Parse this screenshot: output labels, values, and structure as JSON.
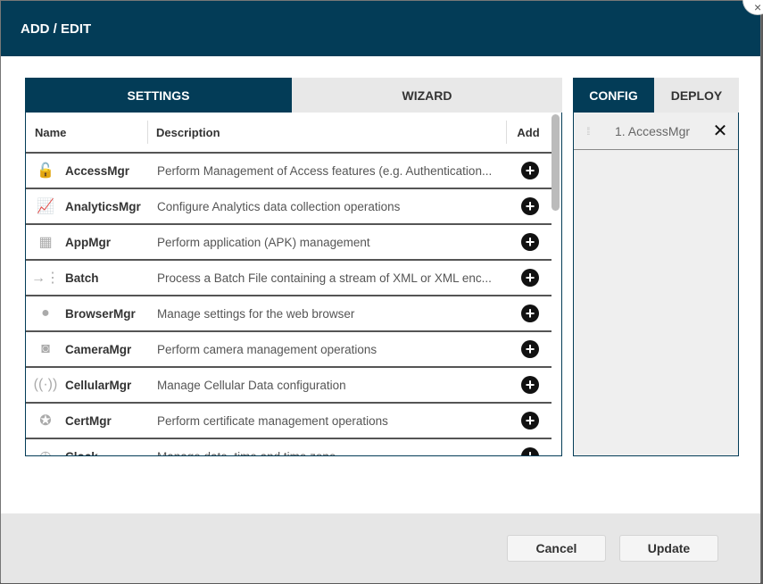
{
  "title": "ADD / EDIT",
  "close_glyph": "×",
  "left_tabs": [
    "SETTINGS",
    "WIZARD"
  ],
  "right_tabs": [
    "CONFIG",
    "DEPLOY"
  ],
  "columns": {
    "name": "Name",
    "description": "Description",
    "add": "Add"
  },
  "rows": [
    {
      "icon": "lock-open-icon",
      "glyph": "🔓",
      "name": "AccessMgr",
      "description": "Perform Management of Access features (e.g. Authentication..."
    },
    {
      "icon": "chart-icon",
      "glyph": "📈",
      "name": "AnalyticsMgr",
      "description": "Configure Analytics data collection operations"
    },
    {
      "icon": "apps-icon",
      "glyph": "▦",
      "name": "AppMgr",
      "description": "Perform application (APK) management"
    },
    {
      "icon": "batch-icon",
      "glyph": "→⋮",
      "name": "Batch",
      "description": "Process a Batch File containing a stream of XML or XML enc..."
    },
    {
      "icon": "globe-icon",
      "glyph": "●",
      "name": "BrowserMgr",
      "description": "Manage settings for the web browser"
    },
    {
      "icon": "camera-icon",
      "glyph": "◙",
      "name": "CameraMgr",
      "description": "Perform camera management operations"
    },
    {
      "icon": "antenna-icon",
      "glyph": "((·))",
      "name": "CellularMgr",
      "description": "Manage Cellular Data configuration"
    },
    {
      "icon": "certificate-icon",
      "glyph": "✪",
      "name": "CertMgr",
      "description": "Perform certificate management operations"
    },
    {
      "icon": "clock-icon",
      "glyph": "◷",
      "name": "Clock",
      "description": "Manage date, time and time zone"
    }
  ],
  "add_glyph": "+",
  "config_items": [
    {
      "label": "1. AccessMgr",
      "remove": "✕"
    }
  ],
  "footer": {
    "cancel": "Cancel",
    "update": "Update"
  }
}
